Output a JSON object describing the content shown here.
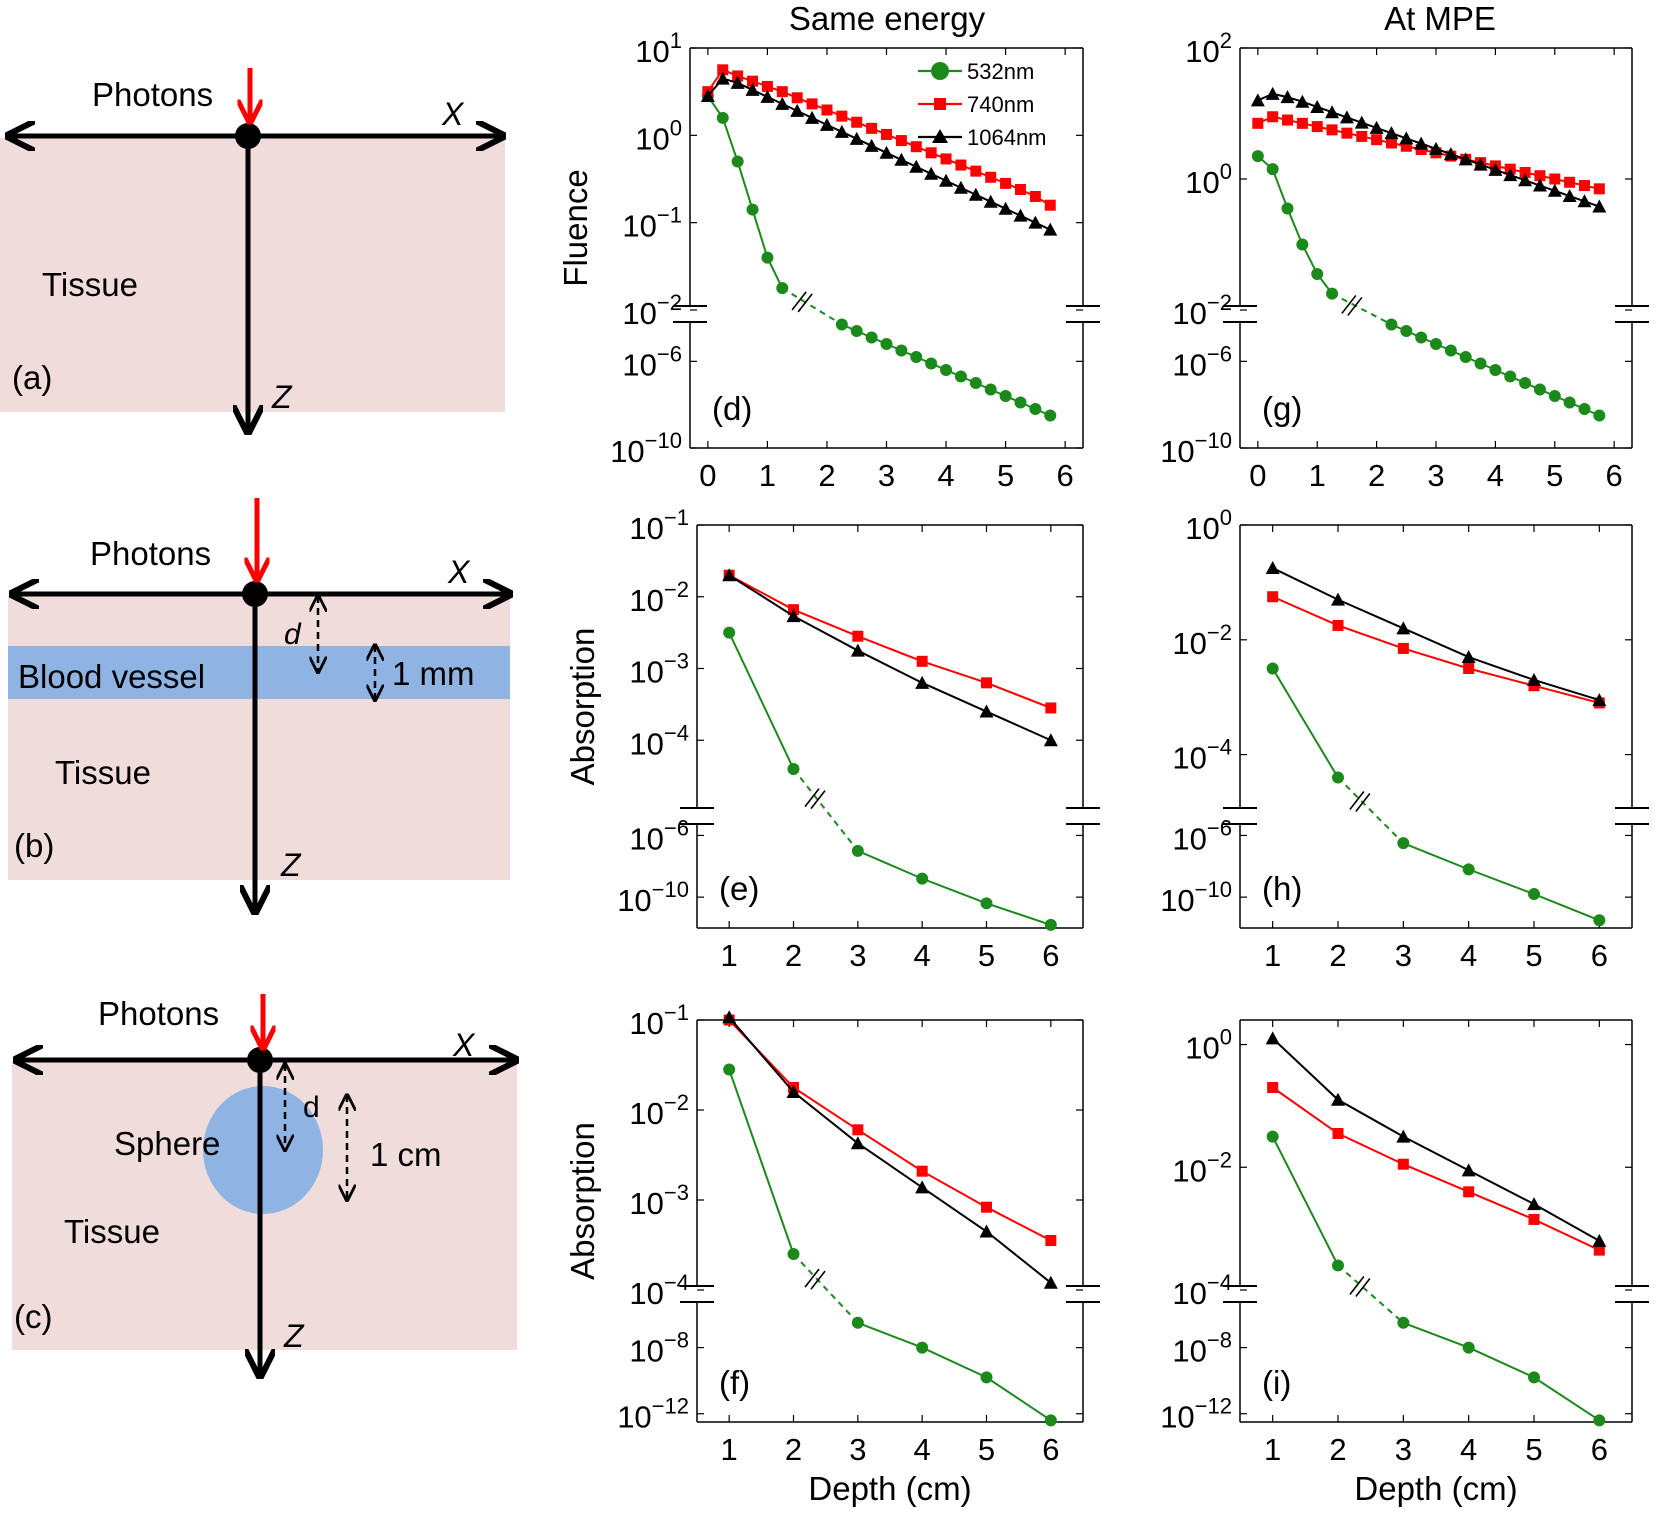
{
  "column_titles": {
    "left": "Same energy",
    "right": "At MPE"
  },
  "colors": {
    "tissue": "#f1dcdc",
    "vessel": "#8fb3e3",
    "arrow": "#ff0000",
    "green": "#1b8a1b",
    "red": "#ff0000",
    "black": "#000000"
  },
  "schematics": {
    "a": {
      "panel_label": "(a)",
      "photons": "Photons",
      "x_axis": "X",
      "z_axis": "Z",
      "tissue": "Tissue"
    },
    "b": {
      "panel_label": "(b)",
      "photons": "Photons",
      "x_axis": "X",
      "z_axis": "Z",
      "tissue": "Tissue",
      "vessel": "Blood vessel",
      "depth": "d",
      "size": "1 mm"
    },
    "c": {
      "panel_label": "(c)",
      "photons": "Photons",
      "x_axis": "X",
      "z_axis": "Z",
      "tissue": "Tissue",
      "sphere": "Sphere",
      "depth": "d",
      "size": "1 cm"
    }
  },
  "legend": [
    {
      "label": "532nm",
      "marker": "circle",
      "color": "#1b8a1b"
    },
    {
      "label": "740nm",
      "marker": "square",
      "color": "#ff0000"
    },
    {
      "label": "1064nm",
      "marker": "triangle",
      "color": "#000000"
    }
  ],
  "chart_data": [
    {
      "id": "d",
      "type": "line",
      "panel_label": "(d)",
      "ylabel": "Fluence",
      "xlabel": "",
      "yscale": "log-broken",
      "xlim": [
        -0.3,
        6.3
      ],
      "xticks": [
        0,
        1,
        2,
        3,
        4,
        5,
        6
      ],
      "upper": {
        "range_exp": [
          -2,
          1
        ],
        "ticks": [
          {
            "base": "10",
            "exp": "1",
            "v": 1
          },
          {
            "base": "10",
            "exp": "0",
            "v": 0
          },
          {
            "base": "10",
            "exp": "−1",
            "v": -1
          },
          {
            "base": "10",
            "exp": "−2",
            "v": -2
          }
        ]
      },
      "lower": {
        "range_exp": [
          -10,
          -4
        ],
        "ticks": [
          {
            "base": "10",
            "exp": "−6",
            "v": -6
          },
          {
            "base": "10",
            "exp": "−10",
            "v": -10
          }
        ]
      },
      "legend_shown": true,
      "series": [
        {
          "name": "532nm",
          "marker": "circle",
          "color": "#1b8a1b",
          "x": [
            0,
            0.25,
            0.5,
            0.75,
            1.0,
            1.25
          ],
          "log10y": [
            0.45,
            0.2,
            -0.3,
            -0.85,
            -1.4,
            -1.75
          ],
          "x_lower": [
            2.25,
            2.5,
            2.75,
            3.0,
            3.25,
            3.5,
            3.75,
            4.0,
            4.25,
            4.5,
            4.75,
            5.0,
            5.25,
            5.5,
            5.75
          ],
          "log10y_lower": [
            -4.3,
            -4.6,
            -4.9,
            -5.2,
            -5.5,
            -5.8,
            -6.1,
            -6.4,
            -6.7,
            -7.0,
            -7.3,
            -7.6,
            -7.9,
            -8.2,
            -8.5
          ]
        },
        {
          "name": "740nm",
          "marker": "square",
          "color": "#ff0000",
          "x": [
            0,
            0.25,
            0.5,
            0.75,
            1.0,
            1.25,
            1.5,
            1.75,
            2.0,
            2.25,
            2.5,
            2.75,
            3.0,
            3.25,
            3.5,
            3.75,
            4.0,
            4.25,
            4.5,
            4.75,
            5.0,
            5.25,
            5.5,
            5.75
          ],
          "log10y": [
            0.5,
            0.75,
            0.68,
            0.62,
            0.56,
            0.5,
            0.43,
            0.36,
            0.29,
            0.22,
            0.15,
            0.08,
            0.01,
            -0.06,
            -0.13,
            -0.2,
            -0.27,
            -0.34,
            -0.41,
            -0.48,
            -0.55,
            -0.62,
            -0.7,
            -0.8
          ]
        },
        {
          "name": "1064nm",
          "marker": "triangle",
          "color": "#000000",
          "x": [
            0,
            0.25,
            0.5,
            0.75,
            1.0,
            1.25,
            1.5,
            1.75,
            2.0,
            2.25,
            2.5,
            2.75,
            3.0,
            3.25,
            3.5,
            3.75,
            4.0,
            4.25,
            4.5,
            4.75,
            5.0,
            5.25,
            5.5,
            5.75
          ],
          "log10y": [
            0.45,
            0.65,
            0.6,
            0.52,
            0.44,
            0.36,
            0.28,
            0.2,
            0.12,
            0.04,
            -0.04,
            -0.12,
            -0.2,
            -0.28,
            -0.36,
            -0.44,
            -0.52,
            -0.6,
            -0.68,
            -0.76,
            -0.84,
            -0.92,
            -1.0,
            -1.08
          ]
        }
      ]
    },
    {
      "id": "g",
      "type": "line",
      "panel_label": "(g)",
      "ylabel": "",
      "xlabel": "",
      "yscale": "log-broken",
      "xlim": [
        -0.3,
        6.3
      ],
      "xticks": [
        0,
        1,
        2,
        3,
        4,
        5,
        6
      ],
      "upper": {
        "range_exp": [
          -2,
          2
        ],
        "ticks": [
          {
            "base": "10",
            "exp": "2",
            "v": 2
          },
          {
            "base": "10",
            "exp": "0",
            "v": 0
          },
          {
            "base": "10",
            "exp": "−2",
            "v": -2
          }
        ]
      },
      "lower": {
        "range_exp": [
          -10,
          -4
        ],
        "ticks": [
          {
            "base": "10",
            "exp": "−6",
            "v": -6
          },
          {
            "base": "10",
            "exp": "−10",
            "v": -10
          }
        ]
      },
      "legend_shown": false,
      "series": [
        {
          "name": "532nm",
          "marker": "circle",
          "color": "#1b8a1b",
          "x": [
            0,
            0.25,
            0.5,
            0.75,
            1.0,
            1.25
          ],
          "log10y": [
            0.35,
            0.15,
            -0.45,
            -1.0,
            -1.45,
            -1.75
          ],
          "x_lower": [
            2.25,
            2.5,
            2.75,
            3.0,
            3.25,
            3.5,
            3.75,
            4.0,
            4.25,
            4.5,
            4.75,
            5.0,
            5.25,
            5.5,
            5.75
          ],
          "log10y_lower": [
            -4.3,
            -4.6,
            -4.9,
            -5.2,
            -5.5,
            -5.8,
            -6.1,
            -6.4,
            -6.7,
            -7.0,
            -7.3,
            -7.6,
            -7.9,
            -8.2,
            -8.5
          ]
        },
        {
          "name": "740nm",
          "marker": "square",
          "color": "#ff0000",
          "x": [
            0,
            0.25,
            0.5,
            0.75,
            1.0,
            1.25,
            1.5,
            1.75,
            2.0,
            2.25,
            2.5,
            2.75,
            3.0,
            3.25,
            3.5,
            3.75,
            4.0,
            4.25,
            4.5,
            4.75,
            5.0,
            5.25,
            5.5,
            5.75
          ],
          "log10y": [
            0.85,
            0.95,
            0.9,
            0.85,
            0.8,
            0.75,
            0.7,
            0.65,
            0.6,
            0.55,
            0.5,
            0.45,
            0.4,
            0.35,
            0.3,
            0.25,
            0.2,
            0.15,
            0.1,
            0.05,
            0.0,
            -0.05,
            -0.1,
            -0.15
          ]
        },
        {
          "name": "1064nm",
          "marker": "triangle",
          "color": "#000000",
          "x": [
            0,
            0.25,
            0.5,
            0.75,
            1.0,
            1.25,
            1.5,
            1.75,
            2.0,
            2.25,
            2.5,
            2.75,
            3.0,
            3.25,
            3.5,
            3.75,
            4.0,
            4.25,
            4.5,
            4.75,
            5.0,
            5.25,
            5.5,
            5.75
          ],
          "log10y": [
            1.2,
            1.3,
            1.25,
            1.18,
            1.1,
            1.02,
            0.94,
            0.86,
            0.78,
            0.7,
            0.62,
            0.54,
            0.46,
            0.38,
            0.3,
            0.22,
            0.14,
            0.06,
            -0.02,
            -0.1,
            -0.18,
            -0.26,
            -0.34,
            -0.42
          ]
        }
      ]
    },
    {
      "id": "e",
      "type": "line",
      "panel_label": "(e)",
      "ylabel": "Absorption",
      "xlabel": "",
      "yscale": "log-broken",
      "xlim": [
        0.5,
        6.5
      ],
      "xticks": [
        1,
        2,
        3,
        4,
        5,
        6
      ],
      "upper": {
        "range_exp": [
          -5,
          -1
        ],
        "ticks": [
          {
            "base": "10",
            "exp": "−1",
            "v": -1
          },
          {
            "base": "10",
            "exp": "−2",
            "v": -2
          },
          {
            "base": "10",
            "exp": "−3",
            "v": -3
          },
          {
            "base": "10",
            "exp": "−4",
            "v": -4
          }
        ]
      },
      "lower": {
        "range_exp": [
          -12,
          -5
        ],
        "ticks": [
          {
            "base": "10",
            "exp": "−6",
            "v": -6
          },
          {
            "base": "10",
            "exp": "−10",
            "v": -10
          }
        ]
      },
      "legend_shown": false,
      "series": [
        {
          "name": "532nm",
          "marker": "circle",
          "color": "#1b8a1b",
          "x": [
            1,
            2
          ],
          "log10y": [
            -2.5,
            -4.4
          ],
          "x_lower": [
            3,
            4,
            5,
            6
          ],
          "log10y_lower": [
            -7.0,
            -8.8,
            -10.4,
            -11.8
          ]
        },
        {
          "name": "740nm",
          "marker": "square",
          "color": "#ff0000",
          "x": [
            1,
            2,
            3,
            4,
            5,
            6
          ],
          "log10y": [
            -1.7,
            -2.18,
            -2.55,
            -2.9,
            -3.2,
            -3.55
          ]
        },
        {
          "name": "1064nm",
          "marker": "triangle",
          "color": "#000000",
          "x": [
            1,
            2,
            3,
            4,
            5,
            6
          ],
          "log10y": [
            -1.7,
            -2.27,
            -2.75,
            -3.2,
            -3.6,
            -4.0
          ]
        }
      ]
    },
    {
      "id": "h",
      "type": "line",
      "panel_label": "(h)",
      "ylabel": "",
      "xlabel": "",
      "yscale": "log-broken",
      "xlim": [
        0.5,
        6.5
      ],
      "xticks": [
        1,
        2,
        3,
        4,
        5,
        6
      ],
      "upper": {
        "range_exp": [
          -5,
          0
        ],
        "ticks": [
          {
            "base": "10",
            "exp": "0",
            "v": 0
          },
          {
            "base": "10",
            "exp": "−2",
            "v": -2
          },
          {
            "base": "10",
            "exp": "−4",
            "v": -4
          }
        ]
      },
      "lower": {
        "range_exp": [
          -12,
          -5
        ],
        "ticks": [
          {
            "base": "10",
            "exp": "−6",
            "v": -6
          },
          {
            "base": "10",
            "exp": "−10",
            "v": -10
          }
        ]
      },
      "legend_shown": false,
      "series": [
        {
          "name": "532nm",
          "marker": "circle",
          "color": "#1b8a1b",
          "x": [
            1,
            2
          ],
          "log10y": [
            -2.5,
            -4.4
          ],
          "x_lower": [
            3,
            4,
            5,
            6
          ],
          "log10y_lower": [
            -6.5,
            -8.2,
            -9.8,
            -11.5
          ]
        },
        {
          "name": "740nm",
          "marker": "square",
          "color": "#ff0000",
          "x": [
            1,
            2,
            3,
            4,
            5,
            6
          ],
          "log10y": [
            -1.25,
            -1.75,
            -2.15,
            -2.5,
            -2.8,
            -3.1
          ]
        },
        {
          "name": "1064nm",
          "marker": "triangle",
          "color": "#000000",
          "x": [
            1,
            2,
            3,
            4,
            5,
            6
          ],
          "log10y": [
            -0.75,
            -1.3,
            -1.8,
            -2.3,
            -2.7,
            -3.05
          ]
        }
      ]
    },
    {
      "id": "f",
      "type": "line",
      "panel_label": "(f)",
      "ylabel": "Absorption",
      "xlabel": "Depth (cm)",
      "yscale": "log-broken",
      "xlim": [
        0.5,
        6.5
      ],
      "xticks": [
        1,
        2,
        3,
        4,
        5,
        6
      ],
      "upper": {
        "range_exp": [
          -4,
          -1
        ],
        "ticks": [
          {
            "base": "10",
            "exp": "−1",
            "v": -1
          },
          {
            "base": "10",
            "exp": "−2",
            "v": -2
          },
          {
            "base": "10",
            "exp": "−3",
            "v": -3
          },
          {
            "base": "10",
            "exp": "−4",
            "v": -4
          }
        ]
      },
      "lower": {
        "range_exp": [
          -12.5,
          -5
        ],
        "ticks": [
          {
            "base": "10",
            "exp": "−8",
            "v": -8
          },
          {
            "base": "10",
            "exp": "−12",
            "v": -12
          }
        ]
      },
      "legend_shown": false,
      "series": [
        {
          "name": "532nm",
          "marker": "circle",
          "color": "#1b8a1b",
          "x": [
            1,
            2
          ],
          "log10y": [
            -1.55,
            -3.6
          ],
          "x_lower": [
            3,
            4,
            5,
            6
          ],
          "log10y_lower": [
            -6.5,
            -8.0,
            -9.8,
            -12.4
          ]
        },
        {
          "name": "740nm",
          "marker": "square",
          "color": "#ff0000",
          "x": [
            1,
            2,
            3,
            4,
            5,
            6
          ],
          "log10y": [
            -1.0,
            -1.75,
            -2.22,
            -2.68,
            -3.08,
            -3.45
          ]
        },
        {
          "name": "1064nm",
          "marker": "triangle",
          "color": "#000000",
          "x": [
            1,
            2,
            3,
            4,
            5,
            6
          ],
          "log10y": [
            -0.97,
            -1.8,
            -2.37,
            -2.86,
            -3.35,
            -3.92
          ]
        }
      ]
    },
    {
      "id": "i",
      "type": "line",
      "panel_label": "(i)",
      "ylabel": "",
      "xlabel": "Depth (cm)",
      "yscale": "log-broken",
      "xlim": [
        0.5,
        6.5
      ],
      "xticks": [
        1,
        2,
        3,
        4,
        5,
        6
      ],
      "upper": {
        "range_exp": [
          -4,
          0.4
        ],
        "ticks": [
          {
            "base": "10",
            "exp": "0",
            "v": 0
          },
          {
            "base": "10",
            "exp": "−2",
            "v": -2
          },
          {
            "base": "10",
            "exp": "−4",
            "v": -4
          }
        ]
      },
      "lower": {
        "range_exp": [
          -12.5,
          -5
        ],
        "ticks": [
          {
            "base": "10",
            "exp": "−8",
            "v": -8
          },
          {
            "base": "10",
            "exp": "−12",
            "v": -12
          }
        ]
      },
      "legend_shown": false,
      "series": [
        {
          "name": "532nm",
          "marker": "circle",
          "color": "#1b8a1b",
          "x": [
            1,
            2
          ],
          "log10y": [
            -1.5,
            -3.6
          ],
          "x_lower": [
            3,
            4,
            5,
            6
          ],
          "log10y_lower": [
            -6.5,
            -8.0,
            -9.8,
            -12.4
          ]
        },
        {
          "name": "740nm",
          "marker": "square",
          "color": "#ff0000",
          "x": [
            1,
            2,
            3,
            4,
            5,
            6
          ],
          "log10y": [
            -0.7,
            -1.45,
            -1.95,
            -2.4,
            -2.85,
            -3.35
          ]
        },
        {
          "name": "1064nm",
          "marker": "triangle",
          "color": "#000000",
          "x": [
            1,
            2,
            3,
            4,
            5,
            6
          ],
          "log10y": [
            0.1,
            -0.9,
            -1.5,
            -2.05,
            -2.6,
            -3.2
          ]
        }
      ]
    }
  ]
}
